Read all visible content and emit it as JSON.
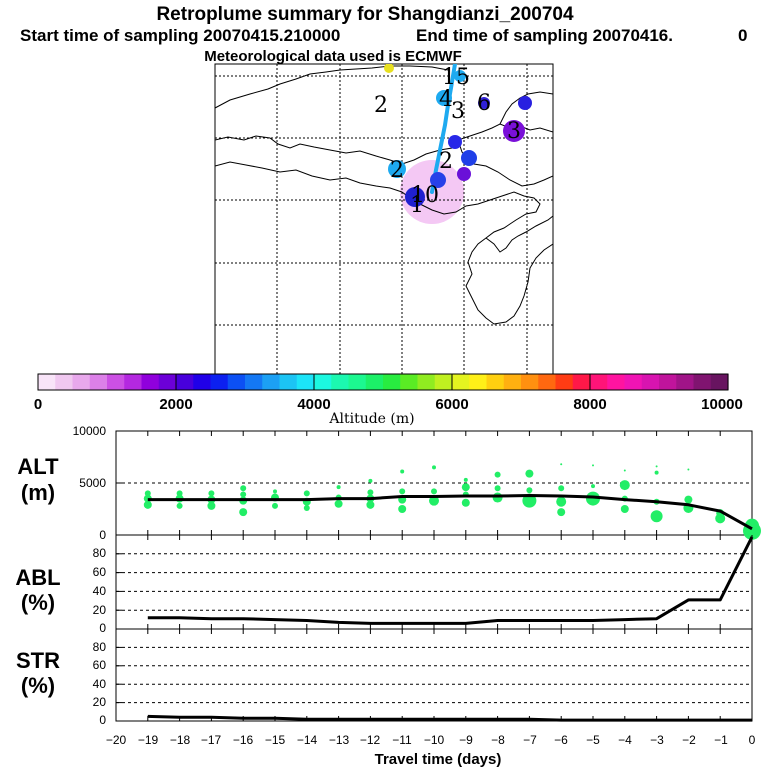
{
  "header": {
    "title": "Retroplume summary for Shangdianzi_200704",
    "start": "Start time of sampling 20070415.210000",
    "end": "End time of sampling 20070416.",
    "end_suffix": "0",
    "met": "Meteorological data used is ECMWF"
  },
  "colors": {
    "plume": "#1eaaf0",
    "scatter": "#22ee66",
    "line": "#000000",
    "map_pink": "#f4c8f4"
  },
  "map": {
    "labels": [
      {
        "text": "2",
        "color": "#000000"
      },
      {
        "text": "15",
        "color": "#000000"
      },
      {
        "text": "4",
        "color": "#000000"
      },
      {
        "text": "3",
        "color": "#000000"
      },
      {
        "text": "6",
        "color": "#000000"
      },
      {
        "text": "2",
        "color": "#000000"
      },
      {
        "text": "2",
        "color": "#000000"
      },
      {
        "text": "10",
        "color": "#000000"
      },
      {
        "text": "1",
        "color": "#000000"
      },
      {
        "text": "3",
        "color": "#000000"
      }
    ]
  },
  "colorbar": {
    "colors": [
      "#f8e4f8",
      "#f0c8f0",
      "#e8a8ec",
      "#dc80e8",
      "#cc50e4",
      "#b428e0",
      "#9000dc",
      "#6c00d8",
      "#4800dc",
      "#2000e8",
      "#0c20f0",
      "#0c50f4",
      "#1478f4",
      "#1ca0f4",
      "#1cc4f4",
      "#1ce4f8",
      "#1cf8e0",
      "#1cf8b0",
      "#1cf890",
      "#1cf068",
      "#28ec40",
      "#5aec24",
      "#90ec20",
      "#c0f020",
      "#e4f420",
      "#fff018",
      "#ffd010",
      "#ffb010",
      "#ff9010",
      "#ff6810",
      "#ff3c14",
      "#ff1848",
      "#ff1478",
      "#ff14a0",
      "#f014b4",
      "#d814b0",
      "#c0149c",
      "#a01488",
      "#801470",
      "#681460"
    ],
    "ticks": [
      "0",
      "2000",
      "4000",
      "6000",
      "8000",
      "10000"
    ],
    "label": "Altitude (m)"
  },
  "chart_data": [
    {
      "type": "line",
      "title": "ALT",
      "ylabel": "(m)",
      "ylim": [
        0,
        10000
      ],
      "yticks": [
        "0",
        "5000",
        "10000"
      ],
      "x": [
        0,
        -1,
        -2,
        -3,
        -4,
        -5,
        -6,
        -7,
        -8,
        -9,
        -10,
        -11,
        -12,
        -13,
        -14,
        -15,
        -16,
        -17,
        -18,
        -19
      ],
      "values": [
        600,
        2300,
        2900,
        3200,
        3400,
        3650,
        3750,
        3800,
        3750,
        3750,
        3700,
        3700,
        3500,
        3500,
        3400,
        3400,
        3400,
        3400,
        3400,
        3400
      ],
      "scatter": [
        {
          "x": 0,
          "y": 400,
          "r": 9
        },
        {
          "x": 0,
          "y": 900,
          "r": 7
        },
        {
          "x": -1,
          "y": 1600,
          "r": 5
        },
        {
          "x": -1,
          "y": 2100,
          "r": 4
        },
        {
          "x": -2,
          "y": 2600,
          "r": 5
        },
        {
          "x": -2,
          "y": 3400,
          "r": 4
        },
        {
          "x": -2,
          "y": 6300,
          "r": 1
        },
        {
          "x": -3,
          "y": 1800,
          "r": 6
        },
        {
          "x": -3,
          "y": 3200,
          "r": 3
        },
        {
          "x": -3,
          "y": 6000,
          "r": 2
        },
        {
          "x": -3,
          "y": 6600,
          "r": 1
        },
        {
          "x": -4,
          "y": 2500,
          "r": 4
        },
        {
          "x": -4,
          "y": 3500,
          "r": 3
        },
        {
          "x": -4,
          "y": 4800,
          "r": 5
        },
        {
          "x": -4,
          "y": 6200,
          "r": 1
        },
        {
          "x": -5,
          "y": 3500,
          "r": 7
        },
        {
          "x": -5,
          "y": 4700,
          "r": 2
        },
        {
          "x": -5,
          "y": 6700,
          "r": 1
        },
        {
          "x": -6,
          "y": 2200,
          "r": 4
        },
        {
          "x": -6,
          "y": 3200,
          "r": 5
        },
        {
          "x": -6,
          "y": 4500,
          "r": 3
        },
        {
          "x": -6,
          "y": 6800,
          "r": 1
        },
        {
          "x": -7,
          "y": 3300,
          "r": 7
        },
        {
          "x": -7,
          "y": 4300,
          "r": 3
        },
        {
          "x": -7,
          "y": 5900,
          "r": 4
        },
        {
          "x": -8,
          "y": 3600,
          "r": 5
        },
        {
          "x": -8,
          "y": 4500,
          "r": 3
        },
        {
          "x": -8,
          "y": 5800,
          "r": 3
        },
        {
          "x": -9,
          "y": 3100,
          "r": 4
        },
        {
          "x": -9,
          "y": 3900,
          "r": 3
        },
        {
          "x": -9,
          "y": 4600,
          "r": 4
        },
        {
          "x": -9,
          "y": 5300,
          "r": 2
        },
        {
          "x": -10,
          "y": 3300,
          "r": 5
        },
        {
          "x": -10,
          "y": 4200,
          "r": 3
        },
        {
          "x": -10,
          "y": 6500,
          "r": 2
        },
        {
          "x": -11,
          "y": 2500,
          "r": 4
        },
        {
          "x": -11,
          "y": 3400,
          "r": 4
        },
        {
          "x": -11,
          "y": 4200,
          "r": 3
        },
        {
          "x": -11,
          "y": 6100,
          "r": 2
        },
        {
          "x": -12,
          "y": 2900,
          "r": 4
        },
        {
          "x": -12,
          "y": 3500,
          "r": 4
        },
        {
          "x": -12,
          "y": 4100,
          "r": 3
        },
        {
          "x": -12,
          "y": 5200,
          "r": 2
        },
        {
          "x": -13,
          "y": 3000,
          "r": 4
        },
        {
          "x": -13,
          "y": 3600,
          "r": 3
        },
        {
          "x": -13,
          "y": 4600,
          "r": 2
        },
        {
          "x": -14,
          "y": 2600,
          "r": 3
        },
        {
          "x": -14,
          "y": 3200,
          "r": 4
        },
        {
          "x": -14,
          "y": 4000,
          "r": 3
        },
        {
          "x": -15,
          "y": 2800,
          "r": 3
        },
        {
          "x": -15,
          "y": 3600,
          "r": 4
        },
        {
          "x": -15,
          "y": 4200,
          "r": 2
        },
        {
          "x": -16,
          "y": 2200,
          "r": 4
        },
        {
          "x": -16,
          "y": 3300,
          "r": 4
        },
        {
          "x": -16,
          "y": 3900,
          "r": 3
        },
        {
          "x": -16,
          "y": 4500,
          "r": 3
        },
        {
          "x": -17,
          "y": 2800,
          "r": 4
        },
        {
          "x": -17,
          "y": 3400,
          "r": 4
        },
        {
          "x": -17,
          "y": 4000,
          "r": 3
        },
        {
          "x": -18,
          "y": 2800,
          "r": 3
        },
        {
          "x": -18,
          "y": 3500,
          "r": 4
        },
        {
          "x": -18,
          "y": 4000,
          "r": 3
        },
        {
          "x": -19,
          "y": 2900,
          "r": 4
        },
        {
          "x": -19,
          "y": 3500,
          "r": 4
        },
        {
          "x": -19,
          "y": 4000,
          "r": 3
        }
      ]
    },
    {
      "type": "line",
      "title": "ABL",
      "ylabel": "(%)",
      "ylim": [
        0,
        100
      ],
      "yticks": [
        "0",
        "20",
        "40",
        "60",
        "80"
      ],
      "x": [
        0,
        -1,
        -2,
        -3,
        -4,
        -5,
        -6,
        -7,
        -8,
        -9,
        -10,
        -11,
        -12,
        -13,
        -14,
        -15,
        -16,
        -17,
        -18,
        -19
      ],
      "values": [
        98,
        31,
        31,
        11,
        10,
        9,
        9,
        9,
        9,
        6,
        6,
        6,
        6,
        7,
        9,
        10,
        11,
        11,
        12,
        12
      ]
    },
    {
      "type": "line",
      "title": "STR",
      "ylabel": "(%)",
      "ylim": [
        0,
        100
      ],
      "yticks": [
        "0",
        "20",
        "40",
        "60",
        "80"
      ],
      "x": [
        0,
        -1,
        -2,
        -3,
        -4,
        -5,
        -6,
        -7,
        -8,
        -9,
        -10,
        -11,
        -12,
        -13,
        -14,
        -15,
        -16,
        -17,
        -18,
        -19
      ],
      "values": [
        1,
        1,
        1,
        1,
        1,
        1,
        1,
        2,
        2,
        2,
        2,
        2,
        2,
        2,
        2,
        3,
        3,
        4,
        4,
        5
      ],
      "xticks": [
        "−20",
        "−19",
        "−18",
        "−17",
        "−16",
        "−15",
        "−14",
        "−13",
        "−12",
        "−11",
        "−10",
        "−9",
        "−8",
        "−7",
        "−6",
        "−5",
        "−4",
        "−3",
        "−2",
        "−1",
        "0"
      ],
      "xlabel": "Travel time (days)"
    }
  ]
}
